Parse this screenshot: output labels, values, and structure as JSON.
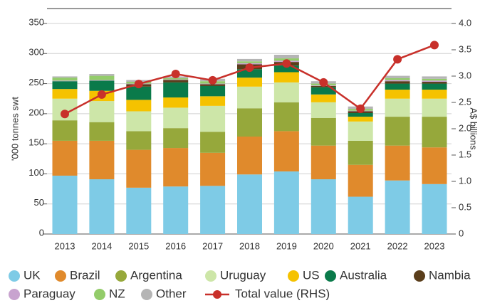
{
  "chart_data": {
    "type": "bar",
    "stacked": true,
    "y_label": "'000 tonnes swt",
    "y2_label": "A$ billions",
    "categories": [
      "2013",
      "2014",
      "2015",
      "2016",
      "2017",
      "2018",
      "2019",
      "2020",
      "2021",
      "2022",
      "2023"
    ],
    "ylim": [
      0,
      350
    ],
    "yticks": [
      0,
      50,
      100,
      150,
      200,
      250,
      300,
      350
    ],
    "y2lim": [
      0,
      4
    ],
    "y2ticks": [
      {
        "value": 0,
        "label": "0"
      },
      0.5,
      {
        "value": 1,
        "label": "1.0"
      },
      1.5,
      {
        "value": 2,
        "label": "2.0"
      },
      2.5,
      {
        "value": 3,
        "label": "3.0"
      },
      3.5,
      {
        "value": 4,
        "label": "4.0"
      }
    ],
    "grid": true,
    "series": [
      {
        "name": "UK",
        "color": "#7ecbe6",
        "values": [
          97,
          91,
          77,
          79,
          80,
          99,
          104,
          91,
          62,
          89,
          83
        ]
      },
      {
        "name": "Brazil",
        "color": "#e08a2c",
        "values": [
          58,
          64,
          63,
          64,
          55,
          63,
          67,
          56,
          53,
          58,
          61
        ]
      },
      {
        "name": "Argentina",
        "color": "#96a83b",
        "values": [
          34,
          31,
          31,
          33,
          35,
          47,
          48,
          46,
          40,
          48,
          51
        ]
      },
      {
        "name": "Uruguay",
        "color": "#cde6a8",
        "values": [
          36,
          35,
          33,
          34,
          43,
          36,
          33,
          26,
          32,
          30,
          30
        ]
      },
      {
        "name": "US",
        "color": "#f5c200",
        "values": [
          16,
          17,
          19,
          17,
          16,
          15,
          17,
          13,
          8,
          15,
          15
        ]
      },
      {
        "name": "Australia",
        "color": "#0a7a4a",
        "values": [
          13,
          17,
          22,
          25,
          17,
          14,
          11,
          12,
          6,
          10,
          10
        ]
      },
      {
        "name": "Nambia",
        "color": "#5a3e1b",
        "values": [
          0,
          0,
          4,
          4,
          3,
          8,
          6,
          2,
          3,
          4,
          3
        ]
      },
      {
        "name": "Paraguay",
        "color": "#c8a3cf",
        "values": [
          1,
          1,
          1,
          1,
          1,
          2,
          2,
          1,
          1,
          2,
          2
        ]
      },
      {
        "name": "NZ",
        "color": "#93cc6a",
        "values": [
          5,
          7,
          3,
          2,
          4,
          3,
          4,
          3,
          3,
          3,
          3
        ]
      },
      {
        "name": "Other",
        "color": "#b5b5b5",
        "values": [
          2,
          3,
          3,
          3,
          4,
          4,
          6,
          4,
          4,
          4,
          4
        ]
      },
      {
        "name": "Total value (RHS)",
        "color": "#c8302a",
        "type": "line",
        "axis": "y2",
        "values": [
          2.28,
          2.65,
          2.85,
          3.04,
          2.92,
          3.16,
          3.24,
          2.88,
          2.38,
          3.32,
          3.59
        ]
      }
    ]
  }
}
